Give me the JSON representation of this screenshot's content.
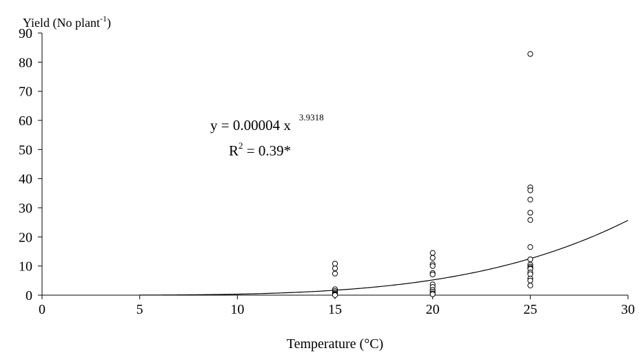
{
  "chart_data": {
    "type": "scatter",
    "title": "",
    "xlabel": "Temperature (°C)",
    "ylabel": {
      "main": "Yield (No plant",
      "superscript": "-1",
      "close": ")"
    },
    "xlim": [
      0,
      30
    ],
    "ylim": [
      0,
      90
    ],
    "x_ticks": [
      "0",
      "5",
      "10",
      "15",
      "20",
      "25",
      "30"
    ],
    "y_ticks": [
      "0",
      "10",
      "20",
      "30",
      "40",
      "50",
      "60",
      "70",
      "80",
      "90"
    ],
    "grid": false,
    "legend": "none",
    "series": [
      {
        "kind": "points",
        "marker": "open-circle",
        "x": [
          15,
          15,
          15,
          15,
          15,
          15,
          15,
          15,
          15,
          20,
          20,
          20,
          20,
          20,
          20,
          20,
          20,
          20,
          20,
          20,
          20,
          25,
          25,
          25,
          25,
          25,
          25,
          25,
          25,
          25,
          25,
          25,
          25,
          25,
          25,
          25,
          25,
          25
        ],
        "y": [
          10.8,
          9.2,
          7.4,
          2.0,
          1.4,
          0.9,
          0.5,
          0.2,
          0.0,
          14.5,
          12.8,
          10.6,
          10.0,
          7.6,
          7.1,
          3.7,
          2.8,
          1.8,
          1.2,
          0.6,
          0.3,
          82.8,
          37.0,
          36.0,
          32.8,
          28.3,
          25.8,
          16.5,
          12.3,
          10.5,
          9.8,
          9.3,
          9.0,
          7.8,
          7.2,
          5.7,
          5.0,
          3.3
        ]
      },
      {
        "kind": "fit-line",
        "model": "power",
        "coefficient": 4e-05,
        "exponent": 3.9318,
        "x_range": [
          5,
          30
        ]
      }
    ],
    "annotations": {
      "equation_base": "y = 0.00004 x",
      "equation_exponent": "3.9318",
      "r2_label": "R",
      "r2_superscript": "2",
      "r2_value": " = 0.39*"
    }
  }
}
